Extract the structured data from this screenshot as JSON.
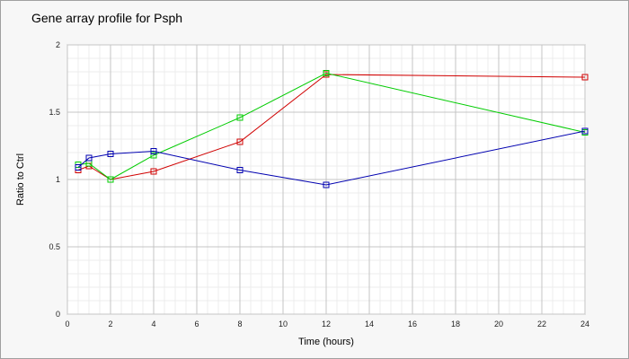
{
  "chart_data": {
    "type": "line",
    "title": "Gene array profile for Psph",
    "xlabel": "Time (hours)",
    "ylabel": "Ratio to Ctrl",
    "xlim": [
      0,
      24
    ],
    "ylim": [
      0,
      2
    ],
    "x_ticks": [
      "0",
      "2",
      "4",
      "6",
      "8",
      "10",
      "12",
      "14",
      "16",
      "18",
      "20",
      "22",
      "24"
    ],
    "y_ticks": [
      "0",
      "0.5",
      "1",
      "1.5",
      "2"
    ],
    "grid": true,
    "legend": "none",
    "series": [
      {
        "color": "#d00000",
        "points": [
          [
            0.5,
            1.07
          ],
          [
            1,
            1.1
          ],
          [
            2,
            1.0
          ],
          [
            4,
            1.06
          ],
          [
            8,
            1.28
          ],
          [
            12,
            1.78
          ],
          [
            24,
            1.76
          ]
        ]
      },
      {
        "color": "#00cc00",
        "points": [
          [
            0.5,
            1.11
          ],
          [
            1,
            1.12
          ],
          [
            2,
            1.0
          ],
          [
            4,
            1.18
          ],
          [
            8,
            1.46
          ],
          [
            12,
            1.79
          ],
          [
            24,
            1.35
          ]
        ]
      },
      {
        "color": "#0000b0",
        "points": [
          [
            0.5,
            1.09
          ],
          [
            1,
            1.16
          ],
          [
            2,
            1.19
          ],
          [
            4,
            1.21
          ],
          [
            8,
            1.07
          ],
          [
            12,
            0.96
          ],
          [
            24,
            1.36
          ]
        ]
      }
    ]
  }
}
